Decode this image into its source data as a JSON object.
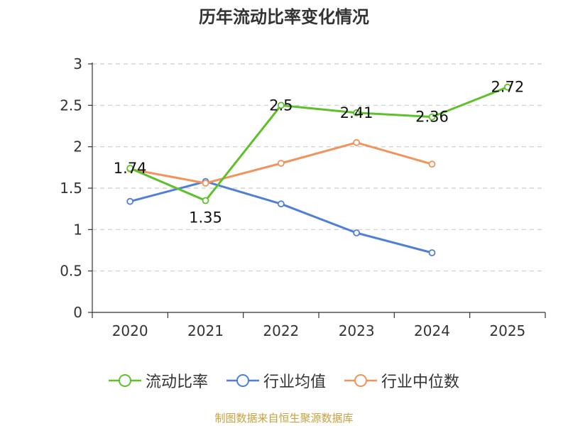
{
  "chart_data": {
    "type": "line",
    "title": "历年流动比率变化情况",
    "categories": [
      "2020",
      "2021",
      "2022",
      "2023",
      "2024",
      "2025"
    ],
    "ylim": [
      0,
      3
    ],
    "yticks": [
      "0",
      "0.5",
      "1",
      "1.5",
      "2",
      "2.5",
      "3"
    ],
    "grid": true,
    "legend_position": "bottom",
    "series": [
      {
        "name": "流动比率",
        "color": "#5ec12c",
        "values": [
          1.74,
          1.35,
          2.5,
          2.41,
          2.36,
          2.72
        ],
        "labels": [
          "1.74",
          "1.35",
          "2.5",
          "2.41",
          "2.36",
          "2.72"
        ]
      },
      {
        "name": "行业均值",
        "color": "#4f7fd9",
        "values": [
          1.34,
          1.58,
          1.31,
          0.96,
          0.72,
          null
        ]
      },
      {
        "name": "行业中位数",
        "color": "#f2925c",
        "values": [
          1.73,
          1.56,
          1.8,
          2.05,
          1.79,
          null
        ]
      }
    ]
  },
  "footer": {
    "source": "制图数据来自恒生聚源数据库"
  }
}
